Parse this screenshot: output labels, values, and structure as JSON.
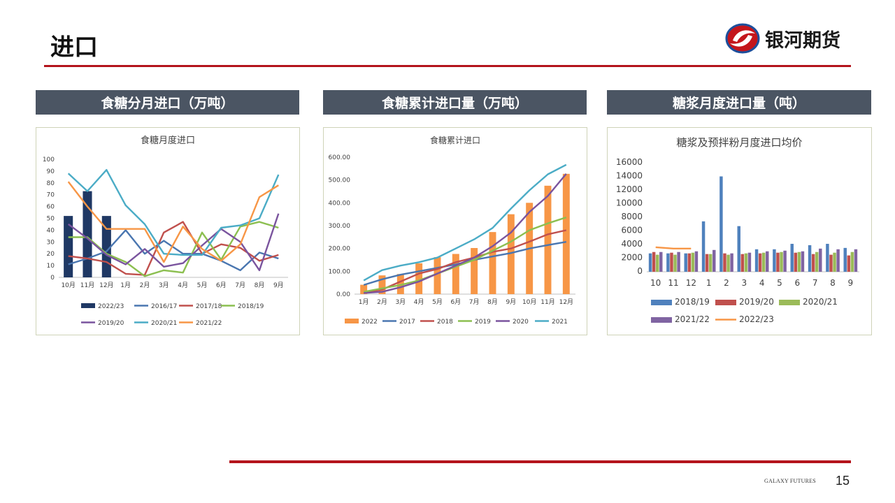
{
  "page": {
    "title": "进口",
    "logo_text": "银河期货",
    "footer_brand": "GALAXY FUTURES",
    "page_number": "15",
    "accent_color": "#b4141c",
    "header_color": "#4b5563"
  },
  "panels": [
    {
      "header": "食糖分月进口（万吨）"
    },
    {
      "header": "食糖累计进口量（万吨）"
    },
    {
      "header": "糖浆月度进口量（吨）"
    }
  ],
  "chart_data": [
    {
      "type": "line",
      "title": "食糖月度进口",
      "categories": [
        "10月",
        "11月",
        "12月",
        "1月",
        "2月",
        "3月",
        "4月",
        "5月",
        "6月",
        "7月",
        "8月",
        "9月"
      ],
      "ylim": [
        0,
        100
      ],
      "yticks": [
        0,
        10,
        20,
        30,
        40,
        50,
        60,
        70,
        80,
        90,
        100
      ],
      "legend": "bottom",
      "series": [
        {
          "name": "2022/23",
          "kind": "bar",
          "color": "#1f3864",
          "values": [
            52,
            73,
            52,
            null,
            null,
            null,
            null,
            null,
            null,
            null,
            null,
            null
          ]
        },
        {
          "name": "2016/17",
          "kind": "line",
          "color": "#4a76b0",
          "values": [
            11,
            16,
            22,
            40,
            20,
            31,
            20,
            20,
            14,
            6,
            21,
            16
          ]
        },
        {
          "name": "2017/18",
          "kind": "line",
          "color": "#c0504d",
          "values": [
            18,
            16,
            13,
            3,
            2,
            38,
            47,
            20,
            28,
            25,
            14,
            19
          ]
        },
        {
          "name": "2018/19",
          "kind": "line",
          "color": "#8cbf50",
          "values": [
            34,
            34,
            20,
            13,
            1,
            6,
            4,
            38,
            15,
            43,
            47,
            42
          ]
        },
        {
          "name": "2019/20",
          "kind": "line",
          "color": "#7a549e",
          "values": [
            45,
            33,
            19,
            11,
            24,
            9,
            12,
            27,
            41,
            30,
            6,
            54
          ]
        },
        {
          "name": "2020/21",
          "kind": "line",
          "color": "#4bacc6",
          "values": [
            88,
            73,
            91,
            61,
            45,
            20,
            19,
            19,
            42,
            44,
            50,
            87
          ]
        },
        {
          "name": "2021/22",
          "kind": "line",
          "color": "#f79646",
          "values": [
            81,
            60,
            41,
            41,
            41,
            13,
            43,
            24,
            14,
            28,
            68,
            78
          ]
        }
      ]
    },
    {
      "type": "line",
      "title": "食糖累计进口",
      "categories": [
        "1月",
        "2月",
        "3月",
        "4月",
        "5月",
        "6月",
        "7月",
        "8月",
        "9月",
        "10月",
        "11月",
        "12月"
      ],
      "ylim": [
        0,
        600
      ],
      "yticks": [
        "0.00",
        "100.00",
        "200.00",
        "300.00",
        "400.00",
        "500.00",
        "600.00"
      ],
      "legend": "bottom",
      "series": [
        {
          "name": "2022",
          "kind": "bar",
          "color": "#f79646",
          "values": [
            41,
            82,
            88,
            135,
            162,
            176,
            202,
            272,
            350,
            400,
            475,
            527
          ]
        },
        {
          "name": "2017",
          "kind": "line",
          "color": "#4a76b0",
          "values": [
            40,
            65,
            85,
            100,
            115,
            130,
            150,
            165,
            180,
            200,
            215,
            229
          ]
        },
        {
          "name": "2018",
          "kind": "line",
          "color": "#c0504d",
          "values": [
            5,
            20,
            55,
            90,
            110,
            140,
            160,
            185,
            200,
            230,
            262,
            280
          ]
        },
        {
          "name": "2019",
          "kind": "line",
          "color": "#8cbf50",
          "values": [
            10,
            25,
            40,
            60,
            90,
            120,
            150,
            190,
            230,
            280,
            310,
            336
          ]
        },
        {
          "name": "2020",
          "kind": "line",
          "color": "#7a549e",
          "values": [
            5,
            10,
            30,
            55,
            90,
            125,
            160,
            210,
            270,
            360,
            430,
            527
          ]
        },
        {
          "name": "2021",
          "kind": "line",
          "color": "#4bacc6",
          "values": [
            60,
            105,
            125,
            140,
            160,
            200,
            240,
            290,
            375,
            455,
            525,
            567
          ]
        }
      ]
    },
    {
      "type": "bar",
      "title": "糖浆及预拌粉月度进口均价",
      "categories": [
        "10",
        "11",
        "12",
        "1",
        "2",
        "3",
        "4",
        "5",
        "6",
        "7",
        "8",
        "9"
      ],
      "ylim": [
        0,
        16000
      ],
      "yticks": [
        0,
        2000,
        4000,
        6000,
        8000,
        10000,
        12000,
        14000,
        16000
      ],
      "legend": "bottom",
      "series": [
        {
          "name": "2018/19",
          "kind": "bar",
          "color": "#4f81bd",
          "values": [
            2700,
            2700,
            2700,
            7400,
            14000,
            6700,
            3300,
            3300,
            4100,
            3900,
            4100,
            3500
          ]
        },
        {
          "name": "2019/20",
          "kind": "bar",
          "color": "#c0504d",
          "values": [
            2900,
            2800,
            2700,
            2600,
            2700,
            2600,
            2700,
            2800,
            2800,
            2600,
            2500,
            2400
          ]
        },
        {
          "name": "2020/21",
          "kind": "bar",
          "color": "#9bbb59",
          "values": [
            2500,
            2500,
            2800,
            2600,
            2500,
            2700,
            2800,
            2900,
            2900,
            2900,
            2800,
            2900
          ]
        },
        {
          "name": "2021/22",
          "kind": "bar",
          "color": "#8064a2",
          "values": [
            2900,
            2900,
            3000,
            3200,
            2700,
            2800,
            3000,
            3100,
            3000,
            3400,
            3300,
            3300
          ]
        },
        {
          "name": "2022/23",
          "kind": "line",
          "color": "#f79646",
          "values": [
            3600,
            3400,
            3400,
            null,
            null,
            null,
            null,
            null,
            null,
            null,
            null,
            null
          ]
        }
      ]
    }
  ]
}
